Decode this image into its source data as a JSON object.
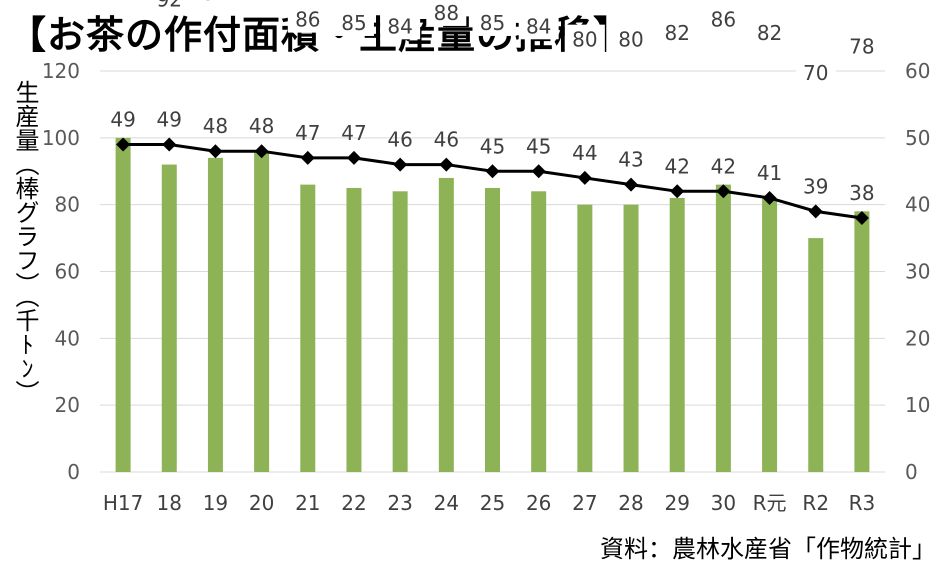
{
  "title": "【お茶の作付面積・生産量の推移】",
  "source": "資料：農林水産省「作物統計」",
  "chart_data": {
    "type": "bar+line",
    "title": "【お茶の作付面積・生産量の推移】",
    "categories": [
      "H17",
      "18",
      "19",
      "20",
      "21",
      "22",
      "23",
      "24",
      "25",
      "26",
      "27",
      "28",
      "29",
      "30",
      "R元",
      "R2",
      "R3"
    ],
    "series": [
      {
        "name": "",
        "type": "bar",
        "axis": "left",
        "color": "#8db356",
        "values": [
          100,
          92,
          94,
          96,
          86,
          85,
          84,
          88,
          85,
          84,
          80,
          80,
          82,
          86,
          82,
          70,
          78
        ]
      },
      {
        "name": "",
        "type": "line",
        "axis": "right",
        "color": "#000000",
        "values": [
          49,
          49,
          48,
          48,
          47,
          47,
          46,
          46,
          45,
          45,
          44,
          43,
          42,
          42,
          41,
          39,
          38
        ]
      }
    ],
    "ylabel_left": "生産量（棒グラフ）（千ﾄﾝ）",
    "ylabel_right": "",
    "ylim_left": [
      0,
      120
    ],
    "ylim_right": [
      0,
      60
    ],
    "yticks_left": [
      0,
      20,
      40,
      60,
      80,
      100,
      120
    ],
    "yticks_right": [
      0,
      10,
      20,
      30,
      40,
      50,
      60
    ],
    "grid": true,
    "legend": "none"
  }
}
